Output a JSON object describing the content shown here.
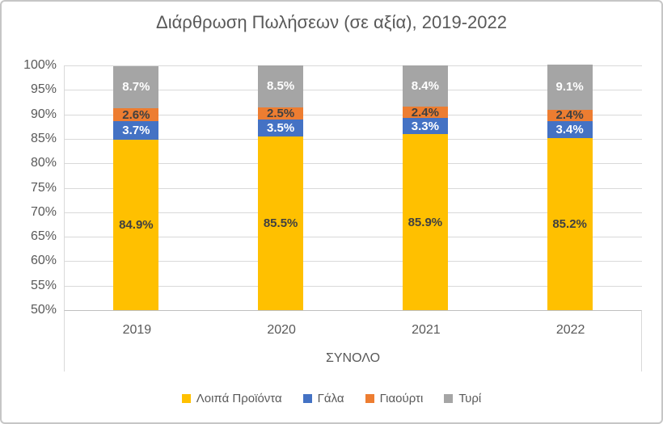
{
  "chart_data": {
    "type": "bar",
    "stacked": true,
    "title": "Διάρθρωση Πωλήσεων (σε αξία), 2019-2022",
    "categories": [
      "2019",
      "2020",
      "2021",
      "2022"
    ],
    "group_label": "ΣΥΝΟΛΟ",
    "series": [
      {
        "key": "other-products",
        "name": "Λοιπά Προϊόντα",
        "color": "#FFC000",
        "label_color": "#404040",
        "values": [
          84.9,
          85.5,
          85.9,
          85.2
        ]
      },
      {
        "key": "milk",
        "name": "Γάλα",
        "color": "#4472C4",
        "label_color": "#FFFFFF",
        "values": [
          3.7,
          3.5,
          3.3,
          3.4
        ]
      },
      {
        "key": "yogurt",
        "name": "Γιαούρτι",
        "color": "#ED7D31",
        "label_color": "#404040",
        "values": [
          2.6,
          2.5,
          2.4,
          2.4
        ]
      },
      {
        "key": "cheese",
        "name": "Τυρί",
        "color": "#A5A5A5",
        "label_color": "#FFFFFF",
        "values": [
          8.7,
          8.5,
          8.4,
          9.1
        ]
      }
    ],
    "y_axis": {
      "min": 50,
      "max": 100,
      "step": 5,
      "tick_labels": [
        "100%",
        "95%",
        "90%",
        "85%",
        "80%",
        "75%",
        "70%",
        "65%",
        "60%",
        "55%",
        "50%"
      ]
    },
    "data_label_suffix": "%",
    "grid": true,
    "legend_position": "bottom",
    "colors": {
      "text": "#595959",
      "gridline": "#D9D9D9",
      "axis_line": "#BFBFBF",
      "background": "#FFFFFF"
    }
  }
}
